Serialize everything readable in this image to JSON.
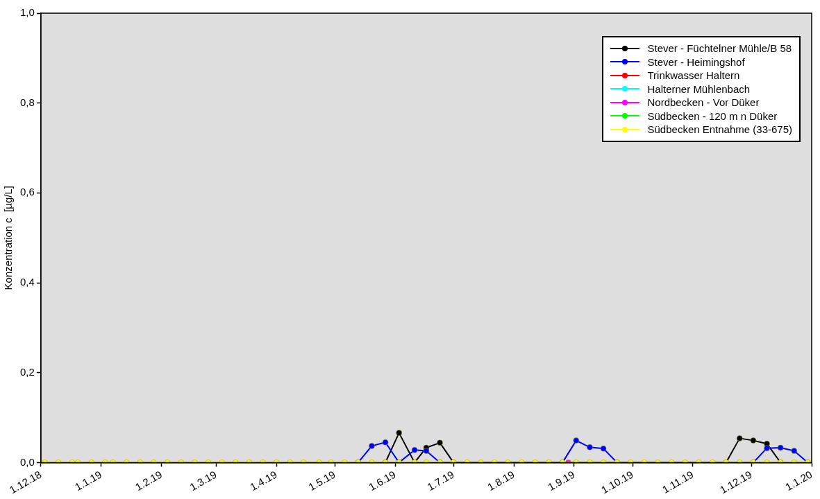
{
  "chart_data": {
    "type": "line",
    "ylabel": "Konzentration c  [µg/L]",
    "marker": "circle",
    "line_style": "solid",
    "grid": false,
    "legend": "top right",
    "xlim": [
      "2018-12-01",
      "2020-01-01"
    ],
    "xticks": [
      {
        "value": "2018-12-01",
        "label": "1.12.18"
      },
      {
        "value": "2019-01-01",
        "label": "1.1.19"
      },
      {
        "value": "2019-02-01",
        "label": "1.2.19"
      },
      {
        "value": "2019-03-01",
        "label": "1.3.19"
      },
      {
        "value": "2019-04-01",
        "label": "1.4.19"
      },
      {
        "value": "2019-05-01",
        "label": "1.5.19"
      },
      {
        "value": "2019-06-01",
        "label": "1.6.19"
      },
      {
        "value": "2019-07-01",
        "label": "1.7.19"
      },
      {
        "value": "2019-08-01",
        "label": "1.8.19"
      },
      {
        "value": "2019-09-01",
        "label": "1.9.19"
      },
      {
        "value": "2019-10-01",
        "label": "1.10.19"
      },
      {
        "value": "2019-11-01",
        "label": "1.11.19"
      },
      {
        "value": "2019-12-01",
        "label": "1.12.19"
      },
      {
        "value": "2020-01-01",
        "label": "1.1.20"
      }
    ],
    "ylim": [
      0,
      1
    ],
    "yticks": [
      {
        "value": 0,
        "label": "0,0"
      },
      {
        "value": 0.2,
        "label": "0,2"
      },
      {
        "value": 0.4,
        "label": "0,4"
      },
      {
        "value": 0.6,
        "label": "0,6"
      },
      {
        "value": 0.8,
        "label": "0,8"
      },
      {
        "value": 1,
        "label": "1,0"
      }
    ],
    "series": [
      {
        "name": "Stever - Füchtelner Mühle/B 58",
        "color": "#000000",
        "x": [
          "2019-05-27",
          "2019-06-03",
          "2019-06-11",
          "2019-06-17",
          "2019-06-24",
          "2019-07-01",
          "2019-11-18",
          "2019-11-25",
          "2019-12-02",
          "2019-12-09",
          "2019-12-16"
        ],
        "values": [
          0,
          0.066,
          0,
          0.033,
          0.044,
          0,
          0,
          0.054,
          0.049,
          0.042,
          0
        ]
      },
      {
        "name": "Stever - Heimingshof",
        "color": "#0000ff",
        "x": [
          "2019-05-13",
          "2019-05-20",
          "2019-05-27",
          "2019-06-03",
          "2019-06-11",
          "2019-06-17",
          "2019-06-24",
          "2019-08-26",
          "2019-09-02",
          "2019-09-09",
          "2019-09-16",
          "2019-09-23",
          "2019-12-02",
          "2019-12-09",
          "2019-12-16",
          "2019-12-23",
          "2019-12-30"
        ],
        "values": [
          0,
          0.037,
          0.045,
          0,
          0.028,
          0.026,
          0,
          0,
          0.049,
          0.034,
          0.031,
          0,
          0,
          0.032,
          0.033,
          0.026,
          0
        ]
      },
      {
        "name": "Trinkwasser Haltern",
        "color": "#ff0000"
      },
      {
        "name": "Halterner Mühlenbach",
        "color": "#00ffff"
      },
      {
        "name": "Nordbecken - Vor Düker",
        "color": "#ff00ff",
        "x": [
          "2019-08-29"
        ],
        "values": [
          0
        ]
      },
      {
        "name": "Südbecken - 120 m n Düker",
        "color": "#00ff00"
      },
      {
        "name": "Südbecken Entnahme (33-675)",
        "color": "#ffff00",
        "x": [
          "2018-12-03",
          "2018-12-10",
          "2018-12-17",
          "2018-12-20",
          "2018-12-27",
          "2019-01-03",
          "2019-01-07",
          "2019-01-14",
          "2019-01-21",
          "2019-01-28",
          "2019-02-04",
          "2019-02-11",
          "2019-02-18",
          "2019-02-25",
          "2019-03-04",
          "2019-03-11",
          "2019-03-18",
          "2019-03-25",
          "2019-04-01",
          "2019-04-08",
          "2019-04-15",
          "2019-04-23",
          "2019-04-29",
          "2019-05-06",
          "2019-05-13",
          "2019-05-20",
          "2019-05-27",
          "2019-06-03",
          "2019-06-11",
          "2019-06-17",
          "2019-06-24",
          "2019-07-01",
          "2019-07-08",
          "2019-07-15",
          "2019-07-22",
          "2019-07-29",
          "2019-08-05",
          "2019-08-12",
          "2019-08-19",
          "2019-08-26",
          "2019-09-02",
          "2019-09-09",
          "2019-09-16",
          "2019-09-23",
          "2019-09-30",
          "2019-10-07",
          "2019-10-14",
          "2019-10-21",
          "2019-10-28",
          "2019-11-04",
          "2019-11-11",
          "2019-11-18",
          "2019-11-25",
          "2019-12-02",
          "2019-12-09",
          "2019-12-16",
          "2019-12-23",
          "2019-12-30"
        ],
        "values": [
          0,
          0,
          0,
          0,
          0,
          0,
          0,
          0,
          0,
          0,
          0,
          0,
          0,
          0,
          0,
          0,
          0,
          0,
          0,
          0,
          0,
          0,
          0,
          0,
          0,
          0,
          0,
          0,
          0,
          0,
          0,
          0,
          0,
          0,
          0,
          0,
          0,
          0,
          0,
          0,
          0,
          0,
          0,
          0,
          0,
          0,
          0,
          0,
          0,
          0,
          0,
          0,
          0,
          0,
          0,
          0,
          0,
          0
        ]
      }
    ]
  }
}
